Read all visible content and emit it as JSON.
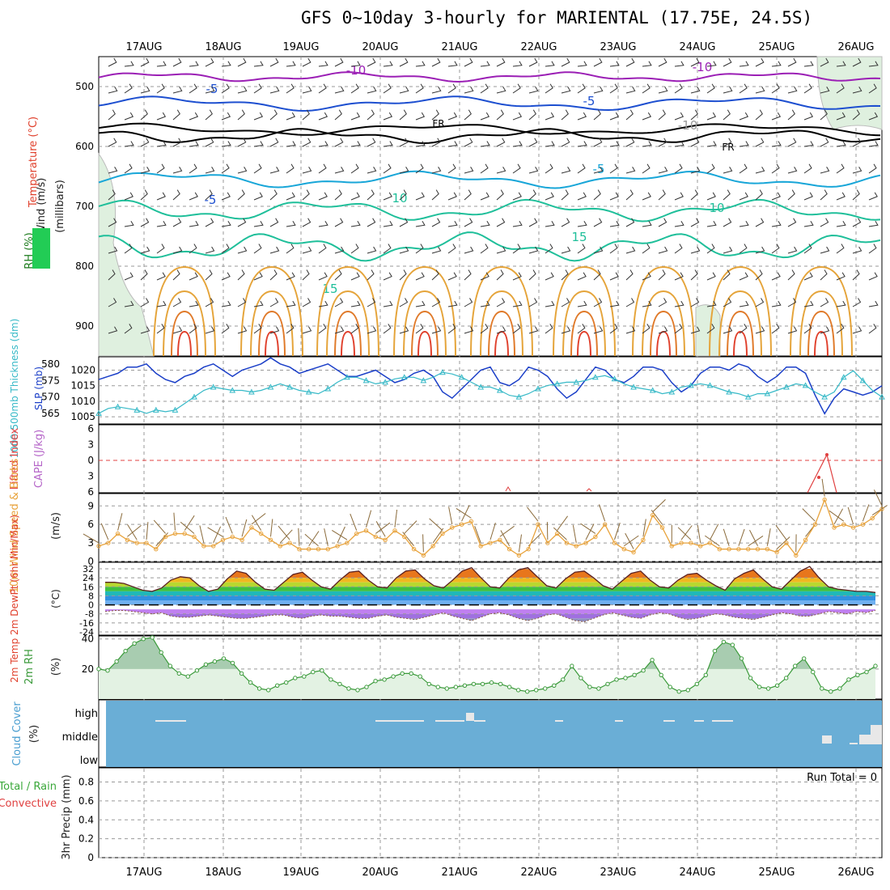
{
  "title": "GFS 0~10day 3-hourly for MARIENTAL (17.75E, 24.5S)",
  "dates": [
    "17AUG",
    "18AUG",
    "19AUG",
    "20AUG",
    "21AUG",
    "22AUG",
    "23AUG",
    "24AUG",
    "25AUG",
    "26AUG"
  ],
  "colors": {
    "temp_purple": "#9b1fb5",
    "temp_blue": "#1d4fd0",
    "temp_cyan": "#18a6d8",
    "temp_teal": "#1fbf9a",
    "temp_orange": "#e5a43a",
    "temp_red": "#e0402c",
    "slp": "#1b3fc8",
    "thick": "#36b9c7",
    "wind10": "#e8a33c",
    "rh2m": "#3a9a3a",
    "cloud": "#6aaed6",
    "li": "#e04040"
  },
  "chart_data": [
    {
      "type": "contour",
      "title": "Wind / Temperature / RH vs pressure",
      "ylabel": "(millibars)",
      "side_labels": {
        "wind": "Wind (m/s)",
        "temp": "Temperature (°C)",
        "rh": "RH (%)"
      },
      "y_ticks": [
        "500",
        "600",
        "700",
        "800",
        "900"
      ],
      "contour_labels": [
        "-10",
        "-10",
        "-5",
        "-5",
        "FR",
        "FR",
        "-5",
        "-5",
        "10",
        "10",
        "15",
        "15",
        "-10"
      ],
      "ylim": [
        950,
        450
      ]
    },
    {
      "type": "line",
      "title": "1000-500mb Thickness (dm) / SLP (mb)",
      "left_label": "1000-500mb Thickness (dm)",
      "right_label": "SLP (mb)",
      "thick_ticks": [
        "580",
        "575",
        "570",
        "565"
      ],
      "slp_ticks": [
        "1020",
        "1015",
        "1010",
        "1005"
      ],
      "series": [
        {
          "name": "SLP (mb)",
          "values": [
            1017,
            1018,
            1019,
            1021,
            1021,
            1022,
            1019,
            1017,
            1016,
            1018,
            1019,
            1021,
            1022,
            1020,
            1018,
            1020,
            1021,
            1022,
            1024,
            1022,
            1021,
            1019,
            1020,
            1021,
            1022,
            1020,
            1018,
            1018,
            1019,
            1020,
            1018,
            1016,
            1017,
            1019,
            1020,
            1018,
            1013,
            1011,
            1014,
            1017,
            1020,
            1021,
            1016,
            1015,
            1017,
            1021,
            1020,
            1018,
            1014,
            1011,
            1013,
            1017,
            1021,
            1020,
            1017,
            1016,
            1018,
            1021,
            1021,
            1020,
            1016,
            1013,
            1015,
            1019,
            1021,
            1021,
            1020,
            1022,
            1021,
            1018,
            1016,
            1018,
            1021,
            1021,
            1019,
            1012,
            1006,
            1011,
            1014,
            1013,
            1012,
            1013,
            1015
          ]
        },
        {
          "name": "Thickness (dm)",
          "values": [
            565,
            566.5,
            567,
            566.5,
            566,
            565,
            566,
            565.5,
            566,
            568,
            570,
            572,
            573,
            572.5,
            572,
            572,
            571.5,
            572,
            573,
            574,
            573,
            572,
            571.5,
            571,
            572.5,
            574.5,
            576,
            576,
            575,
            574,
            574.5,
            575.5,
            576,
            576,
            575,
            576,
            577.5,
            577,
            576,
            574.5,
            573,
            573,
            572,
            570.5,
            570,
            571,
            572.5,
            573.5,
            574,
            574.5,
            574.5,
            575,
            576,
            576.5,
            575.5,
            574,
            573,
            572.5,
            572,
            571,
            571.5,
            573,
            573.5,
            574,
            573.5,
            572.5,
            571.5,
            571,
            570,
            571,
            571,
            572,
            573,
            574,
            573.5,
            571.5,
            570,
            571.5,
            576,
            578,
            575,
            572,
            570
          ]
        }
      ]
    },
    {
      "type": "line",
      "title": "Lifted Index / CAPE (J/kg)",
      "left_label": "Lifted Index",
      "right_label": "CAPE (J/kg)",
      "y_ticks": [
        "6",
        "3",
        "0",
        "3",
        "6"
      ],
      "series": [
        {
          "name": "Lifted Index",
          "values": [
            7,
            5,
            1,
            7,
            7.5,
            7.5
          ]
        }
      ]
    },
    {
      "type": "line",
      "title": "10m Wind Speed & Barbs (m/s)",
      "ylabel": "10m Wind Speed & Barbs",
      "unit": "(m/s)",
      "y_ticks": [
        "9",
        "6",
        "3",
        "0"
      ],
      "ylim": [
        0,
        11
      ],
      "series": [
        {
          "name": "10m wind speed",
          "values": [
            2.5,
            3,
            4.5,
            3.5,
            3,
            3,
            2,
            4,
            4.5,
            4.5,
            4,
            2.5,
            2.5,
            3.5,
            4,
            3.5,
            5.5,
            4.5,
            3.5,
            2.5,
            3,
            2,
            2,
            2,
            2,
            2.5,
            3,
            4.5,
            5,
            4,
            3.5,
            5,
            4,
            2,
            1,
            2.5,
            4.5,
            5.5,
            6,
            6.5,
            2.5,
            3,
            3.5,
            2,
            1,
            2,
            6,
            3,
            4.5,
            3,
            2.5,
            3,
            4,
            6,
            3,
            2,
            1.5,
            3.5,
            7.5,
            5.5,
            2.5,
            3,
            3,
            2.5,
            3,
            2,
            2,
            2,
            2,
            2,
            2,
            1.5,
            3,
            1,
            3.5,
            6,
            10,
            5.5,
            6,
            5.5,
            6,
            7,
            8.5
          ]
        }
      ]
    },
    {
      "type": "area",
      "title": "2m Temp / 2m DewPt (6hr Min/Max) (°C)",
      "ylabel": "2m Temp 2m DewPt (6hr Min/Max)",
      "unit": "(°C)",
      "y_ticks": [
        "32",
        "24",
        "16",
        "8",
        "0",
        "-8",
        "-16",
        "-24"
      ],
      "ylim": [
        -24,
        32
      ],
      "series": [
        {
          "name": "2m Temp",
          "values": [
            20,
            20,
            19,
            16,
            13,
            12,
            15,
            22,
            25,
            24,
            17,
            12,
            14,
            23,
            30,
            28,
            20,
            14,
            13,
            20,
            27,
            29,
            22,
            16,
            14,
            22,
            29,
            30,
            22,
            16,
            15,
            24,
            30,
            31,
            23,
            17,
            15,
            22,
            30,
            33,
            24,
            16,
            15,
            24,
            31,
            33,
            25,
            17,
            15,
            23,
            29,
            30,
            24,
            17,
            14,
            21,
            28,
            30,
            22,
            16,
            15,
            22,
            27,
            28,
            22,
            17,
            13,
            23,
            28,
            31,
            23,
            16,
            14,
            22,
            30,
            34,
            24,
            16,
            14,
            13,
            12,
            12,
            11
          ]
        },
        {
          "name": "2m DewPt",
          "values": [
            -6,
            -5,
            -5,
            -6,
            -7,
            -8,
            -7,
            -10,
            -11,
            -11,
            -10,
            -9,
            -10,
            -11,
            -12,
            -12,
            -11,
            -10,
            -9,
            -9,
            -11,
            -12,
            -10,
            -9,
            -10,
            -10,
            -11,
            -12,
            -12,
            -10,
            -9,
            -11,
            -12,
            -13,
            -11,
            -9,
            -7,
            -10,
            -12,
            -14,
            -11,
            -8,
            -7,
            -9,
            -12,
            -14,
            -12,
            -9,
            -8,
            -11,
            -14,
            -15,
            -12,
            -9,
            -7,
            -9,
            -11,
            -12,
            -9,
            -7,
            -8,
            -11,
            -13,
            -12,
            -10,
            -8,
            -9,
            -11,
            -12,
            -13,
            -11,
            -9,
            -7,
            -8,
            -10,
            -10,
            -8,
            -6,
            -7,
            -8,
            -6,
            -7,
            -5
          ]
        }
      ]
    },
    {
      "type": "area",
      "title": "2m RH (%)",
      "ylabel": "2m RH",
      "unit": "(%)",
      "y_ticks": [
        "40",
        "20"
      ],
      "ylim": [
        0,
        42
      ],
      "series": [
        {
          "name": "2m RH",
          "values": [
            20,
            19,
            25,
            32,
            37,
            40,
            41,
            31,
            22,
            17,
            15,
            19,
            23,
            25,
            27,
            24,
            17,
            11,
            7,
            6,
            9,
            11,
            14,
            15,
            18,
            19,
            13,
            10,
            7,
            6,
            8,
            12,
            13,
            15,
            17,
            17,
            15,
            10,
            8,
            7,
            8,
            9,
            10,
            10,
            11,
            10,
            8,
            6,
            5,
            6,
            7,
            9,
            13,
            22,
            14,
            8,
            7,
            10,
            13,
            14,
            16,
            19,
            26,
            16,
            8,
            5,
            6,
            10,
            16,
            32,
            38,
            36,
            27,
            14,
            8,
            7,
            9,
            14,
            22,
            27,
            18,
            7,
            5,
            7,
            13,
            16,
            18,
            22
          ]
        }
      ]
    },
    {
      "type": "heatmap",
      "title": "Cloud Cover (%)",
      "ylabel": "Cloud Cover",
      "unit": "(%)",
      "y_ticks": [
        "high",
        "middle",
        "low"
      ]
    },
    {
      "type": "bar",
      "title": "3hr Precip (mm) — Total / Rain / Convective",
      "ylabel": "3hr Precip (mm)",
      "side_label_total": "Total / Rain",
      "side_label_conv": "Convective",
      "run_total": "Run Total = 0",
      "y_ticks": [
        "0.8",
        "0.6",
        "0.4",
        "0.2",
        "0"
      ],
      "ylim": [
        0,
        0.95
      ],
      "values": []
    }
  ]
}
